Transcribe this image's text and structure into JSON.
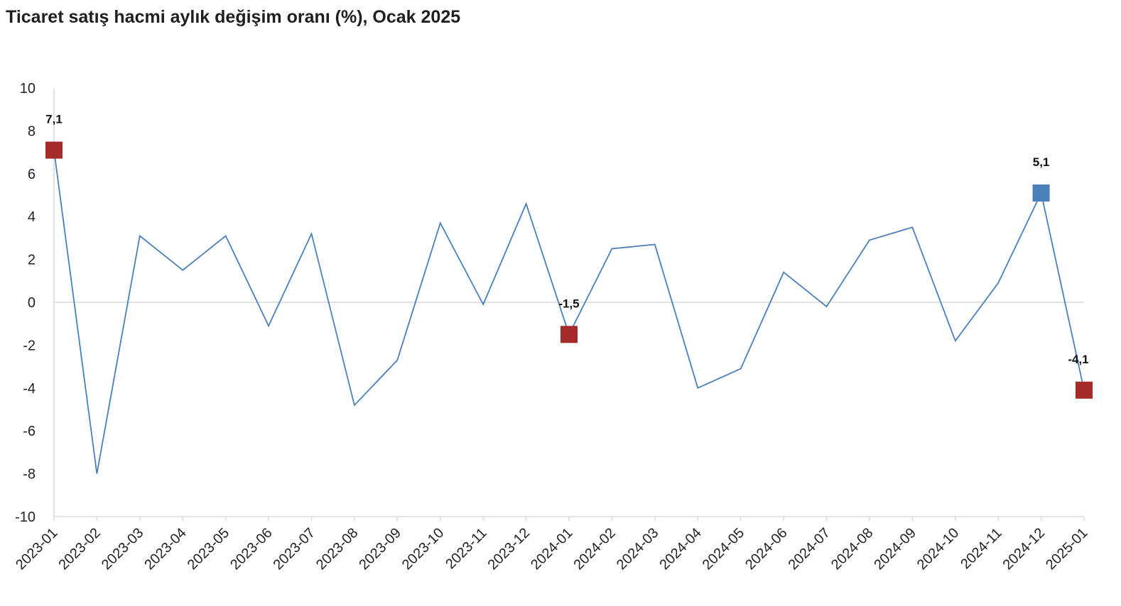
{
  "chart_data": {
    "type": "line",
    "title": "Ticaret satış hacmi aylık değişim oranı (%), Ocak 2025",
    "xlabel": "",
    "ylabel": "",
    "ylim": [
      -10,
      10
    ],
    "yticks": [
      "10",
      "8",
      "6",
      "4",
      "2",
      "0",
      "-2",
      "-4",
      "-6",
      "-8",
      "-10"
    ],
    "grid": false,
    "categories": [
      "2023-01",
      "2023-02",
      "2023-03",
      "2023-04",
      "2023-05",
      "2023-06",
      "2023-07",
      "2023-08",
      "2023-09",
      "2023-10",
      "2023-11",
      "2023-12",
      "2024-01",
      "2024-02",
      "2024-03",
      "2024-04",
      "2024-05",
      "2024-06",
      "2024-07",
      "2024-08",
      "2024-09",
      "2024-10",
      "2024-11",
      "2024-12",
      "2025-01"
    ],
    "series": [
      {
        "values": [
          7.1,
          -8.0,
          3.1,
          1.5,
          3.1,
          -1.1,
          3.2,
          -4.8,
          -2.7,
          3.7,
          -0.1,
          4.6,
          -1.5,
          2.5,
          2.7,
          -4.0,
          -3.1,
          1.4,
          -0.2,
          2.9,
          3.5,
          -1.8,
          0.9,
          5.1,
          -4.1
        ],
        "color": "#4a7fbb"
      }
    ],
    "highlights": [
      {
        "index": 0,
        "label": "7,1",
        "color": "#a52a2a"
      },
      {
        "index": 12,
        "label": "-1,5",
        "color": "#a52a2a"
      },
      {
        "index": 23,
        "label": "5,1",
        "color": "#4a7fbb"
      },
      {
        "index": 24,
        "label": "-4,1",
        "color": "#a52a2a"
      }
    ]
  }
}
